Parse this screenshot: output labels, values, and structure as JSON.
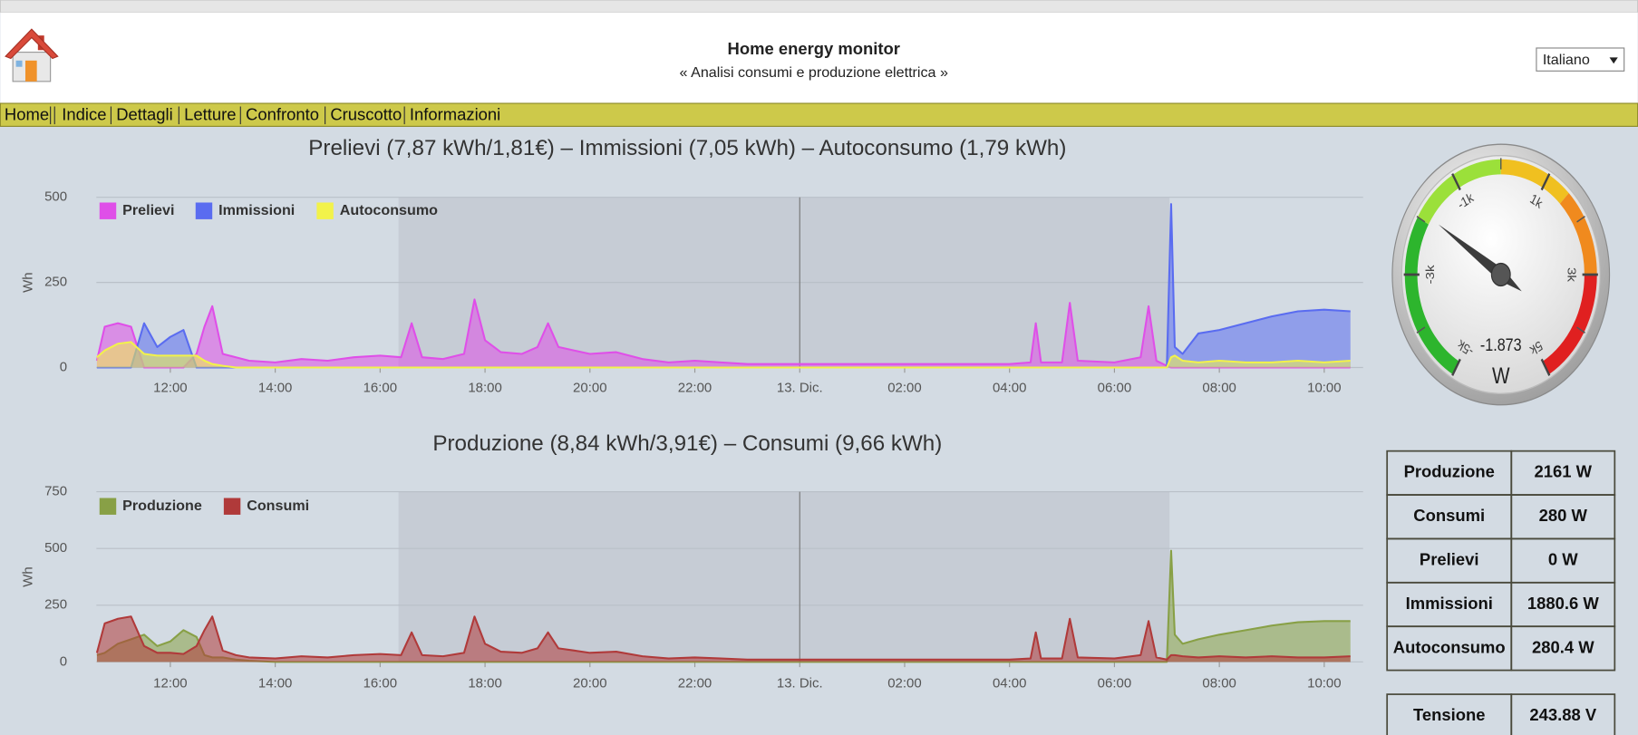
{
  "header": {
    "title": "Home energy monitor",
    "subtitle": "« Analisi consumi e produzione elettrica »"
  },
  "language": "Italiano",
  "nav": {
    "items": [
      "Home",
      "Indice",
      "Dettagli",
      "Letture",
      "Confronto",
      "Cruscotto",
      "Informazioni"
    ]
  },
  "chart_data": [
    {
      "type": "area",
      "title": "Prelievi (7,87 kWh/1,81€) – Immissioni (7,05 kWh) – Autoconsumo (1,79 kWh)",
      "y_label": "Wh",
      "legend": "upper left",
      "grid": true,
      "x": [
        10.6,
        10.75,
        11,
        11.25,
        11.5,
        11.75,
        12,
        12.25,
        12.5,
        12.65,
        12.8,
        13,
        13.25,
        13.5,
        14,
        14.5,
        15,
        15.5,
        16,
        16.4,
        16.6,
        16.8,
        17.2,
        17.6,
        17.8,
        18,
        18.3,
        18.7,
        19,
        19.2,
        19.4,
        19.7,
        20,
        20.5,
        21,
        21.5,
        22,
        22.5,
        23,
        24,
        25,
        26,
        27,
        28,
        28.4,
        28.5,
        28.6,
        29,
        29.15,
        29.3,
        30,
        30.5,
        30.65,
        30.8,
        31,
        31.08,
        31.15,
        31.3,
        31.6,
        32,
        32.5,
        33,
        33.5,
        34,
        34.5
      ],
      "xlim": [
        10.59,
        34.74
      ],
      "xticks": [
        {
          "value": 12,
          "label": "12:00"
        },
        {
          "value": 14,
          "label": "14:00"
        },
        {
          "value": 16,
          "label": "16:00"
        },
        {
          "value": 18,
          "label": "18:00"
        },
        {
          "value": 20,
          "label": "20:00"
        },
        {
          "value": 22,
          "label": "22:00"
        },
        {
          "value": 24,
          "label": "13. Dic."
        },
        {
          "value": 26,
          "label": "02:00"
        },
        {
          "value": 28,
          "label": "04:00"
        },
        {
          "value": 30,
          "label": "06:00"
        },
        {
          "value": 32,
          "label": "08:00"
        },
        {
          "value": 34,
          "label": "10:00"
        }
      ],
      "ylim": [
        0,
        500
      ],
      "yticks": [
        0,
        250,
        500
      ],
      "plot_band": [
        16.35,
        31.05
      ],
      "day_line": 24,
      "series": [
        {
          "name": "Prelievi",
          "color": "#df4fe8",
          "values": [
            20,
            120,
            130,
            120,
            0,
            0,
            0,
            0,
            40,
            120,
            180,
            40,
            30,
            20,
            15,
            25,
            20,
            30,
            35,
            30,
            130,
            30,
            25,
            40,
            200,
            80,
            45,
            40,
            60,
            130,
            60,
            50,
            40,
            45,
            25,
            15,
            20,
            15,
            10,
            10,
            10,
            10,
            10,
            10,
            15,
            130,
            15,
            15,
            190,
            20,
            15,
            30,
            180,
            20,
            5,
            0,
            0,
            0,
            0,
            0,
            0,
            0,
            0,
            0,
            0
          ]
        },
        {
          "name": "Immissioni",
          "color": "#5a6cf0",
          "values": [
            0,
            0,
            0,
            0,
            130,
            60,
            90,
            110,
            0,
            0,
            0,
            0,
            0,
            0,
            0,
            0,
            0,
            0,
            0,
            0,
            0,
            0,
            0,
            0,
            0,
            0,
            0,
            0,
            0,
            0,
            0,
            0,
            0,
            0,
            0,
            0,
            0,
            0,
            0,
            0,
            0,
            0,
            0,
            0,
            0,
            0,
            0,
            0,
            0,
            0,
            0,
            0,
            0,
            0,
            0,
            480,
            60,
            40,
            100,
            110,
            130,
            150,
            165,
            170,
            165
          ]
        },
        {
          "name": "Autoconsumo",
          "color": "#f2f24a",
          "values": [
            30,
            50,
            70,
            75,
            40,
            35,
            35,
            35,
            35,
            20,
            10,
            5,
            0,
            0,
            0,
            0,
            0,
            0,
            0,
            0,
            0,
            0,
            0,
            0,
            0,
            0,
            0,
            0,
            0,
            0,
            0,
            0,
            0,
            0,
            0,
            0,
            0,
            0,
            0,
            0,
            0,
            0,
            0,
            0,
            0,
            0,
            0,
            0,
            0,
            0,
            0,
            0,
            0,
            0,
            0,
            30,
            35,
            20,
            15,
            20,
            15,
            15,
            20,
            15,
            20
          ]
        }
      ]
    },
    {
      "type": "area",
      "title": "Produzione (8,84 kWh/3,91€) – Consumi (9,66 kWh)",
      "y_label": "Wh",
      "legend": "upper left",
      "grid": true,
      "x": [
        10.6,
        10.75,
        11,
        11.25,
        11.5,
        11.75,
        12,
        12.25,
        12.5,
        12.65,
        12.8,
        13,
        13.25,
        13.5,
        14,
        14.5,
        15,
        15.5,
        16,
        16.4,
        16.6,
        16.8,
        17.2,
        17.6,
        17.8,
        18,
        18.3,
        18.7,
        19,
        19.2,
        19.4,
        19.7,
        20,
        20.5,
        21,
        21.5,
        22,
        22.5,
        23,
        24,
        25,
        26,
        27,
        28,
        28.4,
        28.5,
        28.6,
        29,
        29.15,
        29.3,
        30,
        30.5,
        30.65,
        30.8,
        31,
        31.08,
        31.15,
        31.3,
        31.6,
        32,
        32.5,
        33,
        33.5,
        34,
        34.5
      ],
      "xlim": [
        10.59,
        34.74
      ],
      "xticks": [
        {
          "value": 12,
          "label": "12:00"
        },
        {
          "value": 14,
          "label": "14:00"
        },
        {
          "value": 16,
          "label": "16:00"
        },
        {
          "value": 18,
          "label": "18:00"
        },
        {
          "value": 20,
          "label": "20:00"
        },
        {
          "value": 22,
          "label": "22:00"
        },
        {
          "value": 24,
          "label": "13. Dic."
        },
        {
          "value": 26,
          "label": "02:00"
        },
        {
          "value": 28,
          "label": "04:00"
        },
        {
          "value": 30,
          "label": "06:00"
        },
        {
          "value": 32,
          "label": "08:00"
        },
        {
          "value": 34,
          "label": "10:00"
        }
      ],
      "ylim": [
        0,
        750
      ],
      "yticks": [
        0,
        250,
        500,
        750
      ],
      "plot_band": [
        16.35,
        31.05
      ],
      "day_line": 24,
      "series": [
        {
          "name": "Produzione",
          "color": "#88a046",
          "values": [
            30,
            40,
            80,
            100,
            120,
            70,
            90,
            140,
            110,
            30,
            20,
            20,
            10,
            5,
            0,
            0,
            0,
            0,
            0,
            0,
            0,
            0,
            0,
            0,
            0,
            0,
            0,
            0,
            0,
            0,
            0,
            0,
            0,
            0,
            0,
            0,
            0,
            0,
            0,
            0,
            0,
            0,
            0,
            0,
            0,
            0,
            0,
            0,
            0,
            0,
            0,
            0,
            0,
            0,
            0,
            490,
            120,
            80,
            100,
            120,
            140,
            160,
            175,
            180,
            180
          ]
        },
        {
          "name": "Consumi",
          "color": "#b03a3a",
          "values": [
            40,
            170,
            190,
            200,
            70,
            40,
            40,
            35,
            70,
            140,
            200,
            50,
            30,
            20,
            15,
            25,
            20,
            30,
            35,
            30,
            130,
            30,
            25,
            40,
            200,
            80,
            45,
            40,
            60,
            130,
            60,
            50,
            40,
            45,
            25,
            15,
            20,
            15,
            10,
            10,
            10,
            10,
            10,
            10,
            15,
            130,
            15,
            15,
            190,
            20,
            15,
            30,
            180,
            20,
            10,
            30,
            30,
            25,
            20,
            25,
            20,
            25,
            20,
            20,
            25
          ]
        }
      ]
    }
  ],
  "gauge": {
    "range": [
      -5000,
      5000
    ],
    "value": -1873,
    "value_label": "-1.873",
    "unit": "W",
    "ticks": [
      {
        "value": -5000,
        "label": "-5k"
      },
      {
        "value": -3000,
        "label": "-3k"
      },
      {
        "value": -1000,
        "label": "-1k"
      },
      {
        "value": 1000,
        "label": "1k"
      },
      {
        "value": 3000,
        "label": "3k"
      },
      {
        "value": 5000,
        "label": "5k"
      }
    ],
    "bands": [
      {
        "from": -5000,
        "to": -2000,
        "color": "#2db52d"
      },
      {
        "from": -2000,
        "to": 0,
        "color": "#9be03a"
      },
      {
        "from": 0,
        "to": 1500,
        "color": "#f0c020"
      },
      {
        "from": 1500,
        "to": 3000,
        "color": "#f08a1e"
      },
      {
        "from": 3000,
        "to": 5000,
        "color": "#e02020"
      }
    ]
  },
  "table": {
    "rows": [
      [
        "Produzione",
        "2161 W"
      ],
      [
        "Consumi",
        "280 W"
      ],
      [
        "Prelievi",
        "0 W"
      ],
      [
        "Immissioni",
        "1880.6 W"
      ],
      [
        "Autoconsumo",
        "280.4 W"
      ]
    ]
  },
  "voltage_table": {
    "rows": [
      [
        "Tensione",
        "243.88 V"
      ]
    ]
  }
}
